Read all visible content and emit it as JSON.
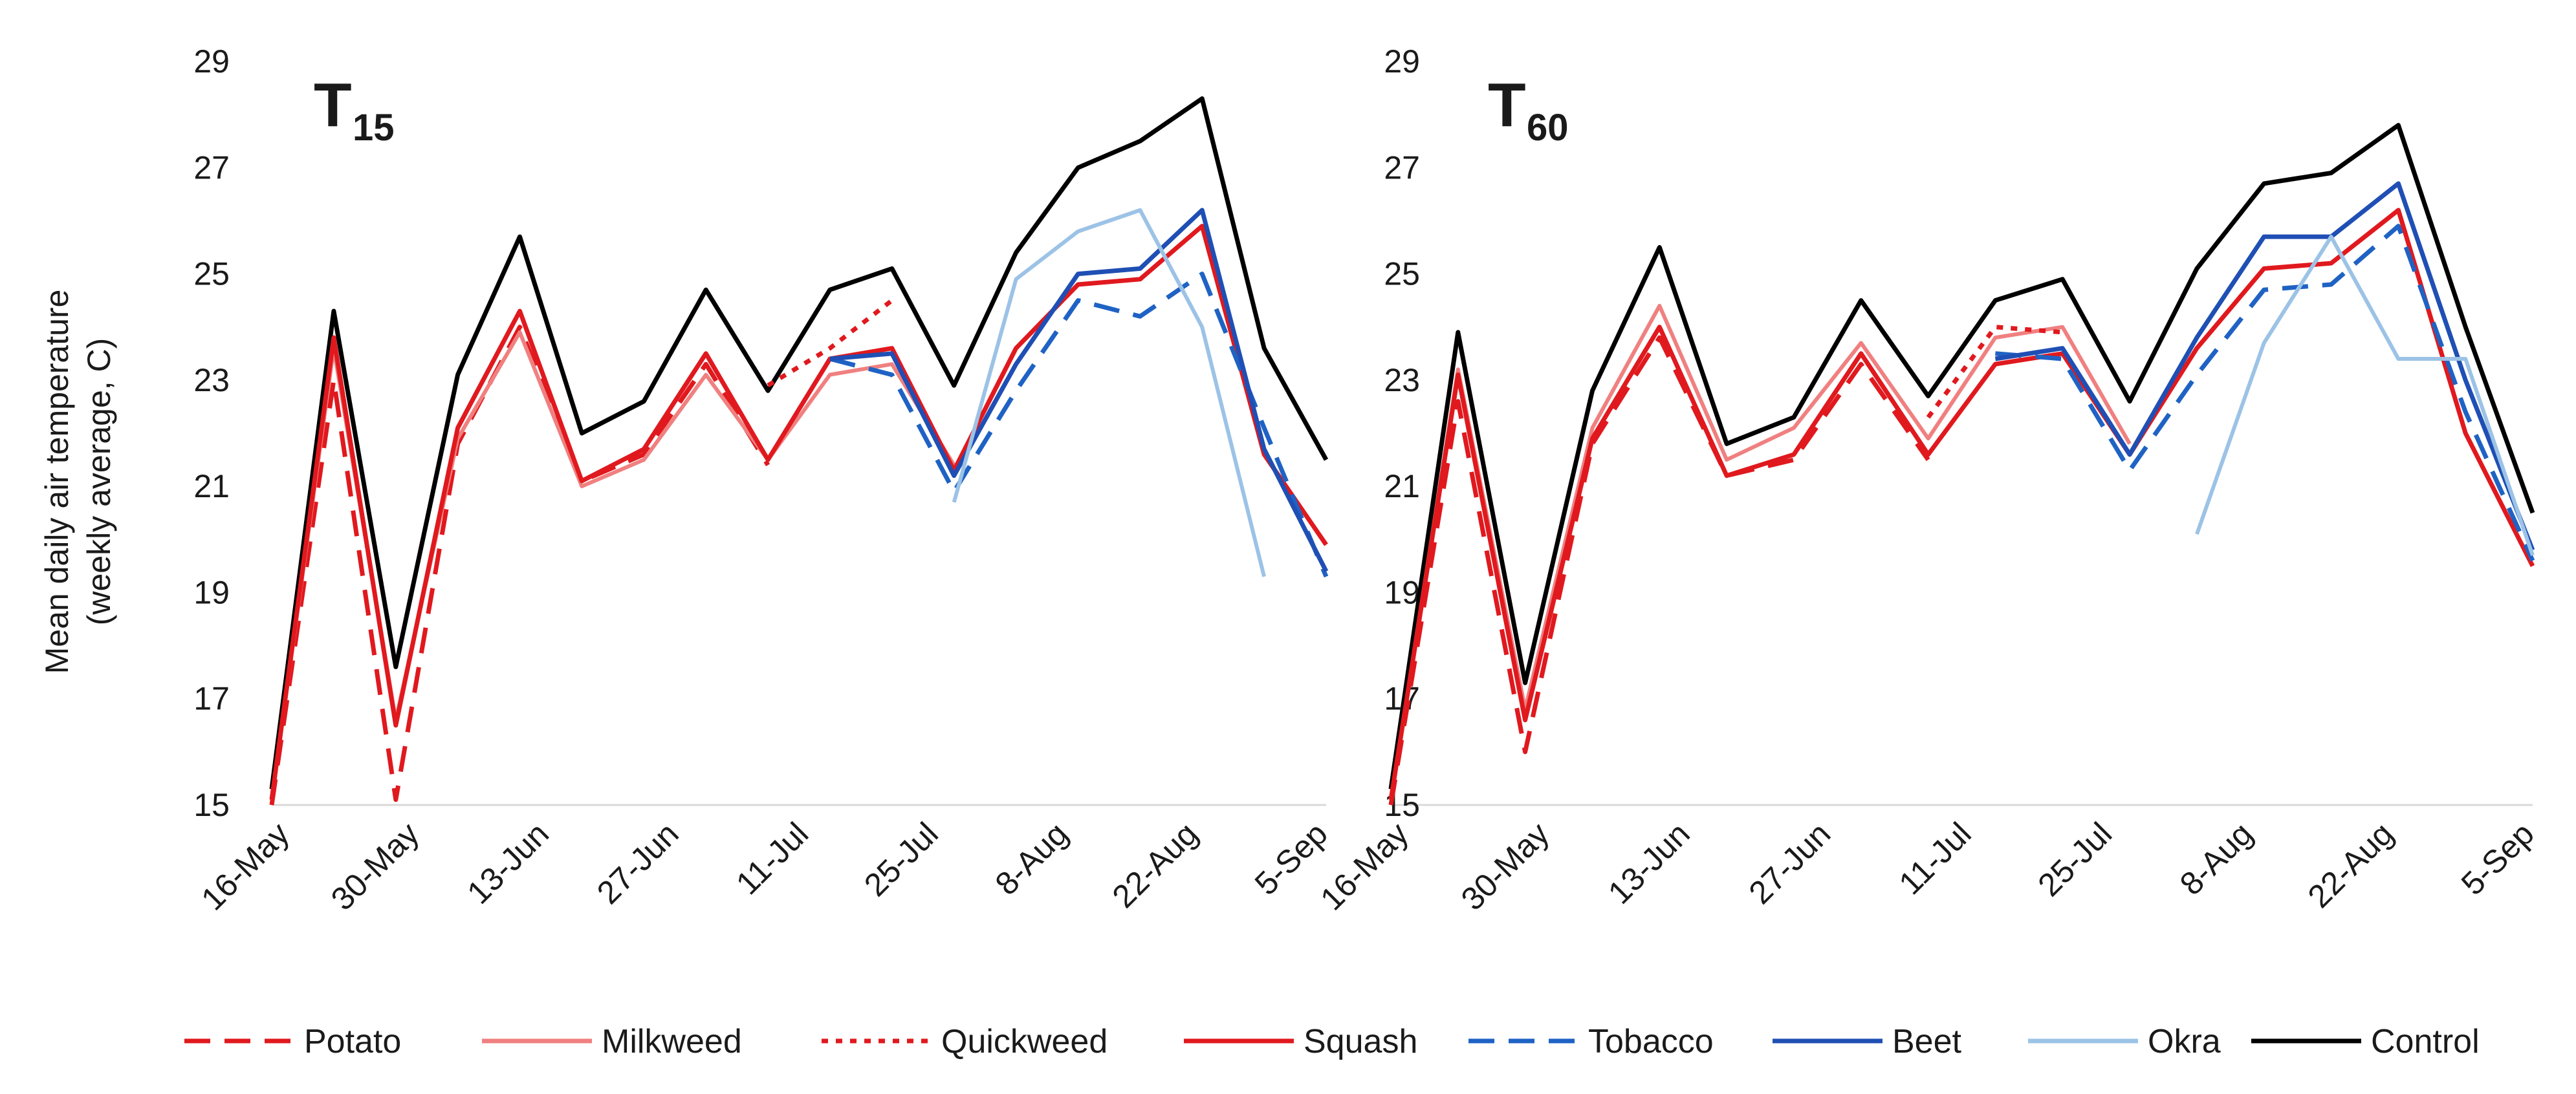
{
  "chart_data": [
    {
      "type": "line",
      "title": "T15",
      "title_main": "T",
      "title_sub": "15",
      "ylabel": "Mean daily air temperature",
      "ylabel_sub": "(weekly average, C)",
      "ylim": [
        15,
        29
      ],
      "yticks": [
        "15",
        "17",
        "19",
        "21",
        "23",
        "25",
        "27",
        "29"
      ],
      "xtick_labels": [
        "16-May",
        "30-May",
        "13-Jun",
        "27-Jun",
        "11-Jul",
        "25-Jul",
        "8-Aug",
        "22-Aug",
        "5-Sep"
      ],
      "x_week_count": 18,
      "series": [
        {
          "name": "Control",
          "values": [
            15.3,
            24.3,
            17.6,
            23.1,
            25.7,
            22.0,
            22.6,
            24.7,
            22.8,
            24.7,
            25.1,
            22.9,
            25.4,
            27.0,
            27.5,
            28.3,
            23.6,
            21.5
          ]
        },
        {
          "name": "Potato",
          "values": [
            15.0,
            23.0,
            15.1,
            21.8,
            24.0,
            21.1,
            21.6,
            23.3,
            21.4,
            null,
            null,
            null,
            null,
            null,
            null,
            null,
            null,
            null
          ]
        },
        {
          "name": "Milkweed",
          "values": [
            15.1,
            23.6,
            16.6,
            21.9,
            23.9,
            21.0,
            21.5,
            23.1,
            21.5,
            23.1,
            23.3,
            21.4,
            null,
            null,
            null,
            null,
            null,
            null
          ]
        },
        {
          "name": "Quickweed",
          "values": [
            null,
            null,
            null,
            null,
            null,
            null,
            null,
            null,
            22.9,
            23.6,
            24.5,
            null,
            null,
            null,
            null,
            null,
            null,
            null
          ]
        },
        {
          "name": "Squash",
          "values": [
            15.1,
            23.8,
            16.5,
            22.1,
            24.3,
            21.1,
            21.7,
            23.5,
            21.5,
            23.4,
            23.6,
            21.3,
            23.6,
            24.8,
            24.9,
            25.9,
            21.6,
            19.9
          ]
        },
        {
          "name": "Tobacco",
          "values": [
            null,
            null,
            null,
            null,
            null,
            null,
            null,
            null,
            null,
            23.4,
            23.1,
            20.9,
            22.8,
            24.5,
            24.2,
            25.0,
            22.1,
            19.3
          ]
        },
        {
          "name": "Beet",
          "values": [
            null,
            null,
            null,
            null,
            null,
            null,
            null,
            null,
            null,
            23.4,
            23.5,
            21.2,
            23.3,
            25.0,
            25.1,
            26.2,
            21.7,
            19.4
          ]
        },
        {
          "name": "Okra",
          "values": [
            null,
            null,
            null,
            null,
            null,
            null,
            null,
            null,
            null,
            null,
            null,
            20.7,
            24.9,
            25.8,
            26.2,
            24.0,
            19.3,
            null
          ]
        }
      ]
    },
    {
      "type": "line",
      "title": "T60",
      "title_main": "T",
      "title_sub": "60",
      "ylim": [
        15,
        29
      ],
      "yticks": [
        "15",
        "17",
        "19",
        "21",
        "23",
        "25",
        "27",
        "29"
      ],
      "xtick_labels": [
        "16-May",
        "30-May",
        "13-Jun",
        "27-Jun",
        "11-Jul",
        "25-Jul",
        "8-Aug",
        "22-Aug",
        "5-Sep"
      ],
      "x_week_count": 18,
      "series": [
        {
          "name": "Control",
          "values": [
            15.3,
            23.9,
            17.3,
            22.8,
            25.5,
            21.8,
            22.3,
            24.5,
            22.7,
            24.5,
            24.9,
            22.6,
            25.1,
            26.7,
            26.9,
            27.8,
            24.0,
            20.5
          ]
        },
        {
          "name": "Potato",
          "values": [
            15.0,
            22.6,
            16.0,
            21.8,
            23.8,
            21.2,
            21.5,
            23.3,
            21.5,
            null,
            null,
            null,
            null,
            null,
            null,
            null,
            null,
            null
          ]
        },
        {
          "name": "Milkweed",
          "values": [
            15.1,
            23.2,
            16.8,
            22.1,
            24.4,
            21.5,
            22.1,
            23.7,
            21.9,
            23.8,
            24.0,
            21.8,
            null,
            null,
            null,
            null,
            null,
            null
          ]
        },
        {
          "name": "Quickweed",
          "values": [
            null,
            null,
            null,
            null,
            null,
            null,
            null,
            null,
            22.3,
            24.0,
            23.9,
            null,
            null,
            null,
            null,
            null,
            null,
            null
          ]
        },
        {
          "name": "Squash",
          "values": [
            15.1,
            23.1,
            16.6,
            21.9,
            24.0,
            21.2,
            21.6,
            23.5,
            21.6,
            23.3,
            23.5,
            21.6,
            23.6,
            25.1,
            25.2,
            26.2,
            22.0,
            19.5
          ]
        },
        {
          "name": "Tobacco",
          "values": [
            null,
            null,
            null,
            null,
            null,
            null,
            null,
            null,
            null,
            23.5,
            23.4,
            21.3,
            23.1,
            24.7,
            24.8,
            25.9,
            22.4,
            19.6
          ]
        },
        {
          "name": "Beet",
          "values": [
            null,
            null,
            null,
            null,
            null,
            null,
            null,
            null,
            null,
            23.4,
            23.6,
            21.6,
            23.8,
            25.7,
            25.7,
            26.7,
            23.0,
            19.8
          ]
        },
        {
          "name": "Okra",
          "values": [
            null,
            null,
            null,
            null,
            null,
            null,
            null,
            null,
            null,
            null,
            null,
            null,
            20.1,
            23.7,
            25.7,
            23.4,
            23.4,
            19.7
          ]
        }
      ]
    }
  ],
  "legend": [
    {
      "name": "Potato",
      "color": "#e0191e",
      "dash": "dashed"
    },
    {
      "name": "Milkweed",
      "color": "#f08080",
      "dash": "solid"
    },
    {
      "name": "Quickweed",
      "color": "#e0191e",
      "dash": "dotted"
    },
    {
      "name": "Squash",
      "color": "#e0191e",
      "dash": "solid"
    },
    {
      "name": "Tobacco",
      "color": "#1f62c4",
      "dash": "dashed"
    },
    {
      "name": "Beet",
      "color": "#1f4fb4",
      "dash": "solid"
    },
    {
      "name": "Okra",
      "color": "#9cc3e6",
      "dash": "solid"
    },
    {
      "name": "Control",
      "color": "#000000",
      "dash": "solid"
    }
  ]
}
